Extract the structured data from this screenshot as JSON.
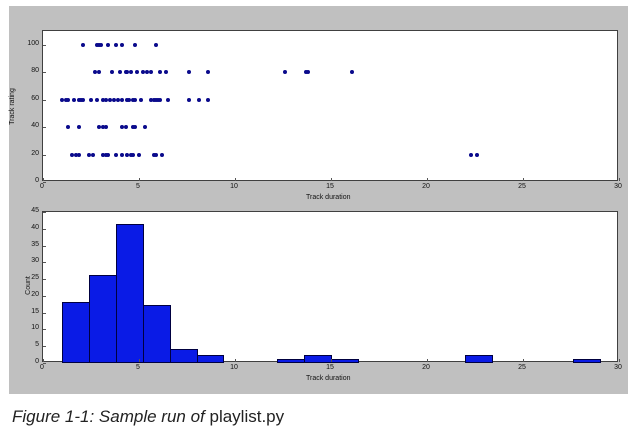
{
  "caption": {
    "prefix": "Figure 1-1: Sample run of ",
    "code": "playlist.py"
  },
  "chart_data": [
    {
      "type": "scatter",
      "title": "",
      "xlabel": "Track duration",
      "ylabel": "Track rating",
      "xlim": [
        0,
        30
      ],
      "ylim": [
        0,
        110
      ],
      "xticks": [
        0,
        5,
        10,
        15,
        20,
        25,
        30
      ],
      "yticks": [
        0,
        20,
        40,
        60,
        80,
        100
      ],
      "grid": false,
      "color": "#0a0a8c",
      "points": [
        [
          2.1,
          100
        ],
        [
          2.8,
          100
        ],
        [
          2.9,
          100
        ],
        [
          3.0,
          100
        ],
        [
          3.4,
          100
        ],
        [
          3.8,
          100
        ],
        [
          4.1,
          100
        ],
        [
          4.8,
          100
        ],
        [
          5.9,
          100
        ],
        [
          2.7,
          80
        ],
        [
          2.9,
          80
        ],
        [
          3.6,
          80
        ],
        [
          4.0,
          80
        ],
        [
          4.3,
          80
        ],
        [
          4.4,
          80
        ],
        [
          4.6,
          80
        ],
        [
          4.9,
          80
        ],
        [
          5.2,
          80
        ],
        [
          5.4,
          80
        ],
        [
          5.6,
          80
        ],
        [
          6.1,
          80
        ],
        [
          6.4,
          80
        ],
        [
          7.6,
          80
        ],
        [
          8.6,
          80
        ],
        [
          12.6,
          80
        ],
        [
          13.7,
          80
        ],
        [
          13.8,
          80
        ],
        [
          16.1,
          80
        ],
        [
          1.0,
          60
        ],
        [
          1.2,
          60
        ],
        [
          1.3,
          60
        ],
        [
          1.6,
          60
        ],
        [
          1.9,
          60
        ],
        [
          2.0,
          60
        ],
        [
          2.1,
          60
        ],
        [
          2.5,
          60
        ],
        [
          2.8,
          60
        ],
        [
          3.1,
          60
        ],
        [
          3.3,
          60
        ],
        [
          3.5,
          60
        ],
        [
          3.7,
          60
        ],
        [
          3.9,
          60
        ],
        [
          4.1,
          60
        ],
        [
          4.4,
          60
        ],
        [
          4.5,
          60
        ],
        [
          4.7,
          60
        ],
        [
          4.8,
          60
        ],
        [
          5.1,
          60
        ],
        [
          5.6,
          60
        ],
        [
          5.8,
          60
        ],
        [
          5.9,
          60
        ],
        [
          6.0,
          60
        ],
        [
          6.1,
          60
        ],
        [
          6.5,
          60
        ],
        [
          7.6,
          60
        ],
        [
          8.1,
          60
        ],
        [
          8.6,
          60
        ],
        [
          1.3,
          40
        ],
        [
          1.9,
          40
        ],
        [
          2.9,
          40
        ],
        [
          3.1,
          40
        ],
        [
          3.3,
          40
        ],
        [
          4.1,
          40
        ],
        [
          4.3,
          40
        ],
        [
          4.7,
          40
        ],
        [
          4.8,
          40
        ],
        [
          5.3,
          40
        ],
        [
          1.5,
          20
        ],
        [
          1.7,
          20
        ],
        [
          1.9,
          20
        ],
        [
          2.4,
          20
        ],
        [
          2.6,
          20
        ],
        [
          3.1,
          20
        ],
        [
          3.3,
          20
        ],
        [
          3.4,
          20
        ],
        [
          3.8,
          20
        ],
        [
          4.1,
          20
        ],
        [
          4.4,
          20
        ],
        [
          4.6,
          20
        ],
        [
          4.7,
          20
        ],
        [
          5.0,
          20
        ],
        [
          5.8,
          20
        ],
        [
          5.9,
          20
        ],
        [
          6.2,
          20
        ],
        [
          22.3,
          20
        ],
        [
          22.6,
          20
        ]
      ]
    },
    {
      "type": "bar",
      "subtype": "histogram",
      "title": "",
      "xlabel": "Track duration",
      "ylabel": "Count",
      "xlim": [
        0,
        30
      ],
      "ylim": [
        0,
        45
      ],
      "xticks": [
        0,
        5,
        10,
        15,
        20,
        25,
        30
      ],
      "yticks": [
        0,
        5,
        10,
        15,
        20,
        25,
        30,
        35,
        40,
        45
      ],
      "grid": false,
      "color": "#0a1be6",
      "bin_edges": [
        1.0,
        2.4,
        3.8,
        5.2,
        6.6,
        8.0,
        9.4,
        10.8,
        12.2,
        13.6,
        15.0,
        16.4,
        17.8,
        19.2,
        20.6,
        22.0,
        23.4,
        24.8,
        26.2,
        27.6,
        29.0
      ],
      "values": [
        18,
        26,
        41,
        17,
        4,
        2,
        0,
        0,
        1,
        2,
        1,
        0,
        0,
        0,
        0,
        2,
        0,
        0,
        0,
        1
      ]
    }
  ]
}
